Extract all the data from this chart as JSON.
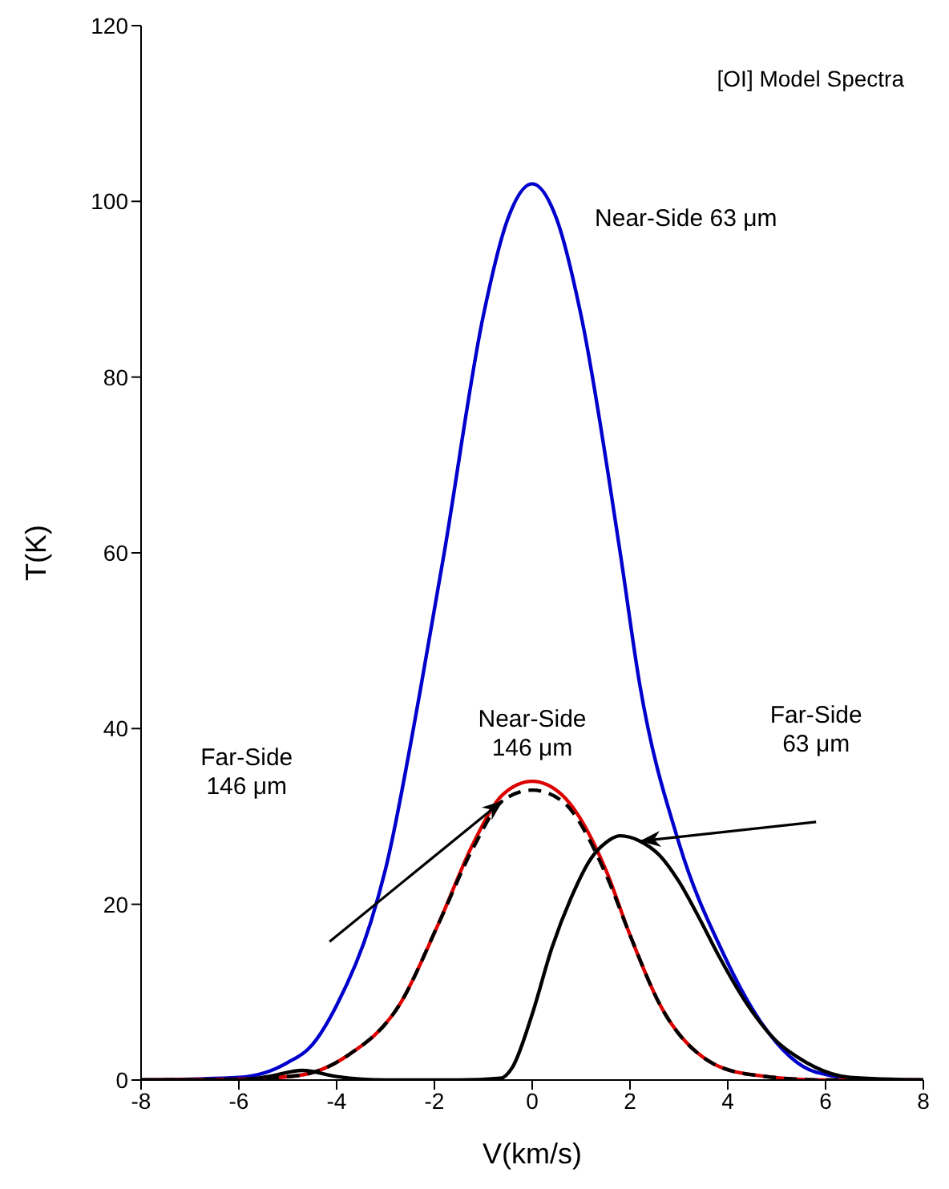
{
  "chart_data": {
    "type": "line",
    "title": "[OI] Model Spectra",
    "xlabel": "V(km/s)",
    "ylabel": "T(K)",
    "xlim": [
      -8,
      8
    ],
    "xticks": [
      -8,
      -6,
      -4,
      -2,
      0,
      2,
      4,
      6,
      8
    ],
    "ylim": [
      0,
      120
    ],
    "yticks": [
      0,
      20,
      40,
      60,
      80,
      100,
      120
    ],
    "marker": "none",
    "series": [
      {
        "color": "#0000cc",
        "line_style": "solid",
        "x": [
          -8,
          -6,
          -5,
          -4.5,
          -4,
          -3.3,
          -3,
          -2.3,
          -1.8,
          -1,
          -0.5,
          0,
          0.5,
          1,
          1.8,
          2.2,
          3,
          3.9,
          4.7,
          5.8,
          7,
          8
        ],
        "values": [
          0,
          0.3,
          2,
          4,
          8.5,
          18,
          24,
          44,
          60,
          87,
          98,
          102,
          98,
          87,
          60,
          45,
          27,
          14.5,
          6.4,
          0.9,
          0,
          0
        ]
      },
      {
        "color": "#dd0000",
        "line_style": "solid",
        "x": [
          -8,
          -6,
          -4.8,
          -3.8,
          -2.7,
          -1.9,
          -1.2,
          -0.6,
          0,
          0.6,
          1.5,
          2,
          2.6,
          3.6,
          4.5,
          6,
          8
        ],
        "values": [
          0,
          0.1,
          0.5,
          2.7,
          8.7,
          18,
          27,
          32.5,
          34,
          32.5,
          24,
          16.5,
          8.7,
          2.2,
          0.6,
          0,
          0
        ]
      },
      {
        "color": "#000000",
        "line_style": "dashed",
        "x": [
          -8,
          -6,
          -4.8,
          -3.8,
          -2.7,
          -1.9,
          -1.2,
          -0.6,
          0,
          0.6,
          1.5,
          2,
          2.6,
          3.6,
          4.5,
          6,
          8
        ],
        "values": [
          0,
          0.1,
          0.5,
          2.7,
          8.7,
          18,
          26.5,
          31.8,
          33,
          31.8,
          23.5,
          16.5,
          8.7,
          2.2,
          0.6,
          0,
          0
        ]
      },
      {
        "color": "#000000",
        "line_style": "solid",
        "x": [
          -8,
          -6,
          -5.4,
          -4.7,
          -4,
          -3,
          -1.5,
          -0.65,
          -0.4,
          0,
          0.4,
          0.8,
          1.2,
          1.5,
          1.8,
          2.2,
          2.6,
          3,
          3.4,
          3.8,
          4.4,
          5,
          5.4,
          6.5,
          8
        ],
        "values": [
          0,
          0,
          0.4,
          1.1,
          0.4,
          0,
          0,
          0.2,
          1.5,
          7.5,
          15,
          20.8,
          25.2,
          27,
          27.8,
          27.2,
          25.6,
          22.6,
          18.6,
          14.3,
          8.6,
          4.4,
          2.7,
          0.3,
          0
        ]
      }
    ],
    "annotations": [
      "Near-Side 63 μm",
      "Near-Side 146 μm",
      "Far-Side 146 μm",
      "Far-Side 63 μm"
    ]
  }
}
